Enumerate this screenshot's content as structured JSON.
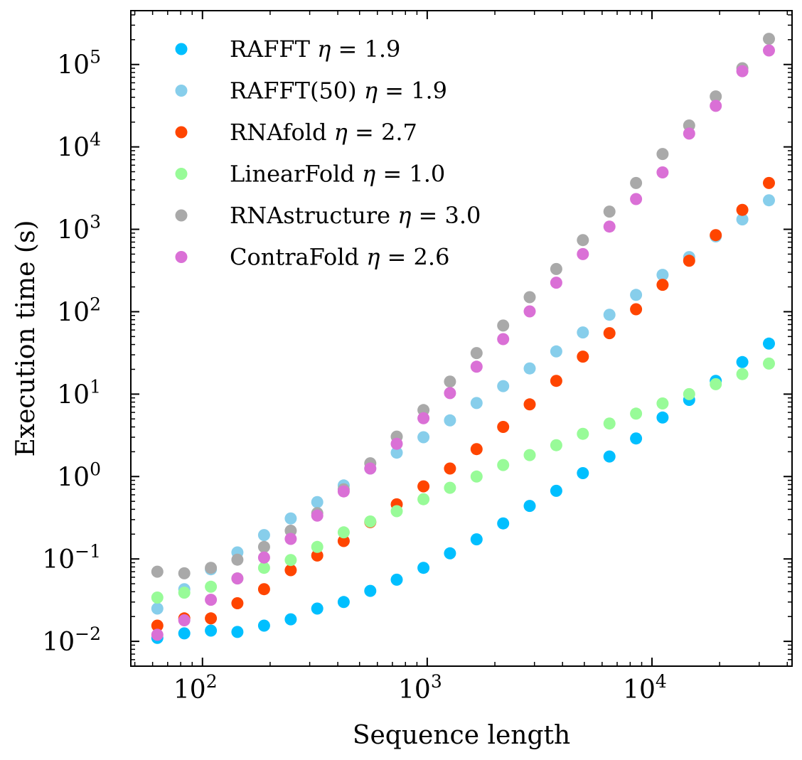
{
  "chart_data": {
    "type": "scatter",
    "xlabel": "Sequence length",
    "ylabel": "Execution time (s)",
    "xscale": "log",
    "yscale": "log",
    "xlim": [
      48,
      42000
    ],
    "ylim": [
      0.005,
      450000
    ],
    "x_tick_labels": [
      {
        "base": "10",
        "exp": "2",
        "value": 100
      },
      {
        "base": "10",
        "exp": "3",
        "value": 1000
      },
      {
        "base": "10",
        "exp": "4",
        "value": 10000
      }
    ],
    "y_tick_labels": [
      {
        "base": "10",
        "exp": "−2",
        "value": 0.01
      },
      {
        "base": "10",
        "exp": "−1",
        "value": 0.1
      },
      {
        "base": "10",
        "exp": "0",
        "value": 1
      },
      {
        "base": "10",
        "exp": "1",
        "value": 10
      },
      {
        "base": "10",
        "exp": "2",
        "value": 100
      },
      {
        "base": "10",
        "exp": "3",
        "value": 1000
      },
      {
        "base": "10",
        "exp": "4",
        "value": 10000
      },
      {
        "base": "10",
        "exp": "5",
        "value": 100000
      }
    ],
    "grid": false,
    "legend_position": "top-left",
    "x": [
      63,
      83,
      109,
      143,
      188,
      247,
      324,
      425,
      558,
      732,
      962,
      1263,
      1658,
      2177,
      2858,
      3752,
      4926,
      6468,
      8493,
      11151,
      14642,
      19227,
      25246,
      33150
    ],
    "series": [
      {
        "name": "RAFFT",
        "eta": "1.9",
        "color": "#00bfff",
        "values": [
          0.011,
          0.0125,
          0.0135,
          0.013,
          0.0155,
          0.0185,
          0.025,
          0.03,
          0.041,
          0.056,
          0.078,
          0.117,
          0.173,
          0.27,
          0.44,
          0.67,
          1.1,
          1.75,
          2.9,
          5.2,
          8.5,
          14.5,
          24.5,
          41
        ]
      },
      {
        "name": "RAFFT(50)",
        "eta": "1.9",
        "color": "#87ceeb",
        "values": [
          0.025,
          0.043,
          0.075,
          0.12,
          0.195,
          0.31,
          0.49,
          0.78,
          1.25,
          1.95,
          3.0,
          4.8,
          7.8,
          12.5,
          20.5,
          33,
          56,
          92,
          160,
          280,
          460,
          820,
          1320,
          2250
        ]
      },
      {
        "name": "RNAfold",
        "eta": "2.7",
        "color": "#ff4500",
        "values": [
          0.0155,
          0.019,
          0.019,
          0.029,
          0.043,
          0.073,
          0.11,
          0.165,
          0.28,
          0.46,
          0.76,
          1.25,
          2.15,
          4.0,
          7.5,
          14.5,
          28.5,
          55,
          107,
          212,
          415,
          850,
          1720,
          3650
        ]
      },
      {
        "name": "LinearFold",
        "eta": "1.0",
        "color": "#98fb98",
        "values": [
          0.034,
          0.039,
          0.046,
          0.058,
          0.078,
          0.097,
          0.14,
          0.21,
          0.285,
          0.38,
          0.53,
          0.73,
          1.0,
          1.38,
          1.82,
          2.4,
          3.3,
          4.4,
          5.8,
          7.7,
          10.0,
          13.2,
          17.5,
          23.5
        ]
      },
      {
        "name": "RNAstructure",
        "eta": "3.0",
        "color": "#a9a9a9",
        "values": [
          0.07,
          0.067,
          0.078,
          0.098,
          0.14,
          0.22,
          0.36,
          0.7,
          1.45,
          3.05,
          6.4,
          14.2,
          31.5,
          68,
          150,
          330,
          740,
          1640,
          3650,
          8200,
          18200,
          41000,
          90000,
          205000
        ]
      },
      {
        "name": "ContraFold",
        "eta": "2.6",
        "color": "#da70d6",
        "values": [
          0.012,
          0.018,
          0.032,
          0.058,
          0.104,
          0.175,
          0.335,
          0.66,
          1.25,
          2.5,
          5.1,
          10.3,
          21.5,
          46.5,
          101,
          225,
          500,
          1080,
          2330,
          4900,
          14500,
          31500,
          83000,
          148000
        ]
      }
    ],
    "legend_entries": [
      {
        "name": "RAFFT",
        "eta": "1.9"
      },
      {
        "name": "RAFFT(50)",
        "eta": "1.9"
      },
      {
        "name": "RNAfold",
        "eta": "2.7"
      },
      {
        "name": "LinearFold",
        "eta": "1.0"
      },
      {
        "name": "RNAstructure",
        "eta": "3.0"
      },
      {
        "name": "ContraFold",
        "eta": "2.6"
      }
    ],
    "legend_symbol": "η",
    "legend_eq": " = "
  }
}
